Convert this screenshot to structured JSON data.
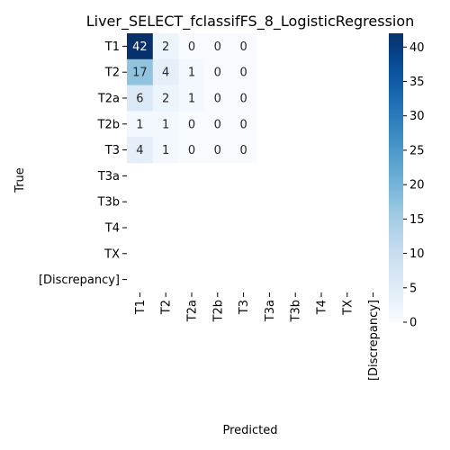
{
  "chart_data": {
    "type": "heatmap",
    "title": "Liver_SELECT_fclassifFS_8_LogisticRegression",
    "xlabel": "Predicted",
    "ylabel": "True",
    "row_labels": [
      "T1",
      "T2",
      "T2a",
      "T2b",
      "T3",
      "T3a",
      "T3b",
      "T4",
      "TX",
      "[Discrepancy]"
    ],
    "col_labels": [
      "T1",
      "T2",
      "T2a",
      "T2b",
      "T3",
      "T3a",
      "T3b",
      "T4",
      "TX",
      "[Discrepancy]"
    ],
    "values": [
      [
        42,
        2,
        0,
        0,
        0,
        null,
        null,
        null,
        null,
        null
      ],
      [
        17,
        4,
        1,
        0,
        0,
        null,
        null,
        null,
        null,
        null
      ],
      [
        6,
        2,
        1,
        0,
        0,
        null,
        null,
        null,
        null,
        null
      ],
      [
        1,
        1,
        0,
        0,
        0,
        null,
        null,
        null,
        null,
        null
      ],
      [
        4,
        1,
        0,
        0,
        0,
        null,
        null,
        null,
        null,
        null
      ],
      [
        null,
        null,
        null,
        null,
        null,
        null,
        null,
        null,
        null,
        null
      ],
      [
        null,
        null,
        null,
        null,
        null,
        null,
        null,
        null,
        null,
        null
      ],
      [
        null,
        null,
        null,
        null,
        null,
        null,
        null,
        null,
        null,
        null
      ],
      [
        null,
        null,
        null,
        null,
        null,
        null,
        null,
        null,
        null,
        null
      ],
      [
        null,
        null,
        null,
        null,
        null,
        null,
        null,
        null,
        null,
        null
      ]
    ],
    "colorbar": {
      "min": 0,
      "max": 42,
      "ticks": [
        0,
        5,
        10,
        15,
        20,
        25,
        30,
        35,
        40
      ],
      "colormap": "Blues"
    }
  }
}
